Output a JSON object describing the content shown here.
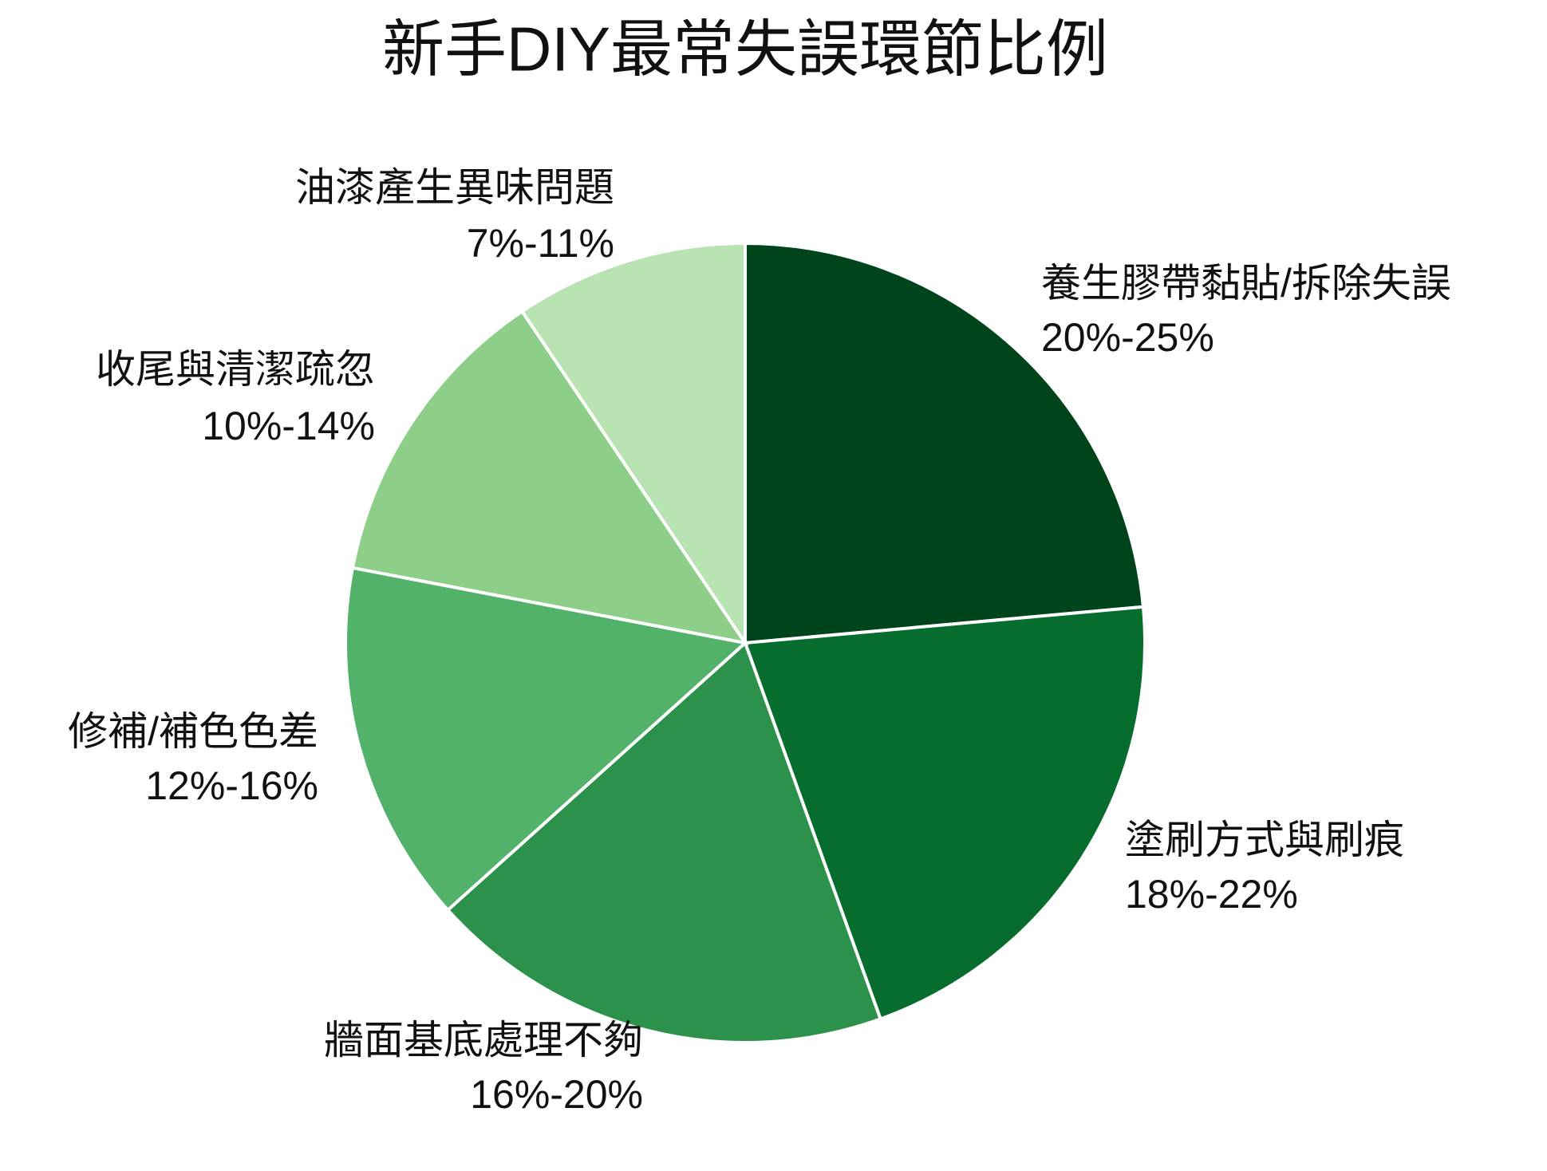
{
  "chart_data": {
    "type": "pie",
    "title": "新手DIY最常失誤環節比例",
    "categories": [
      "養生膠帶黏貼/拆除失誤",
      "塗刷方式與刷痕",
      "牆面基底處理不夠",
      "修補/補色色差",
      "收尾與清潔疏忽",
      "油漆產生異味問題"
    ],
    "values": [
      22.5,
      20,
      18,
      14,
      12,
      9
    ],
    "value_labels": [
      "20%-25%",
      "18%-22%",
      "16%-20%",
      "12%-16%",
      "10%-14%",
      "7%-11%"
    ],
    "colors": [
      "#00441b",
      "#066d2f",
      "#2c924b",
      "#53b26a",
      "#8dcf89",
      "#b9e3b2"
    ]
  }
}
